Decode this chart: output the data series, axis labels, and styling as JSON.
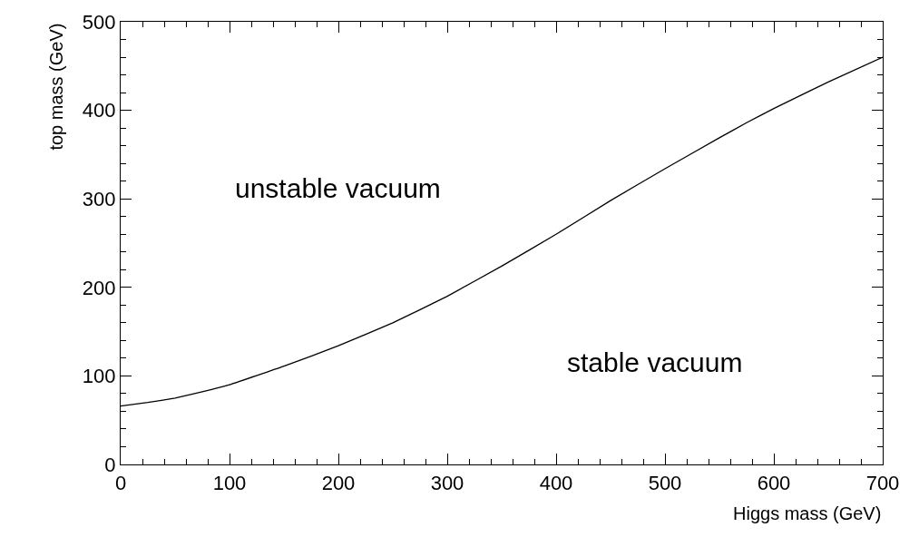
{
  "chart_data": {
    "type": "line",
    "xlabel": "Higgs mass (GeV)",
    "ylabel": "top mass (GeV)",
    "x": [
      0,
      25,
      50,
      75,
      100,
      150,
      200,
      250,
      300,
      350,
      400,
      450,
      500,
      550,
      575,
      600,
      650,
      700
    ],
    "series": [
      {
        "color": "#000000",
        "values": [
          66,
          70,
          75,
          82,
          90,
          111,
          134,
          160,
          190,
          224,
          260,
          298,
          334,
          369,
          386,
          402,
          432,
          460
        ]
      }
    ],
    "annotations": [
      "unstable vacuum",
      "stable vacuum"
    ],
    "xlim": [
      0,
      700
    ],
    "ylim": [
      0,
      500
    ],
    "xticks": [
      0,
      100,
      200,
      300,
      400,
      500,
      600,
      700
    ],
    "yticks": [
      0,
      100,
      200,
      300,
      400,
      500
    ],
    "marker": "none",
    "line_style": "solid"
  }
}
